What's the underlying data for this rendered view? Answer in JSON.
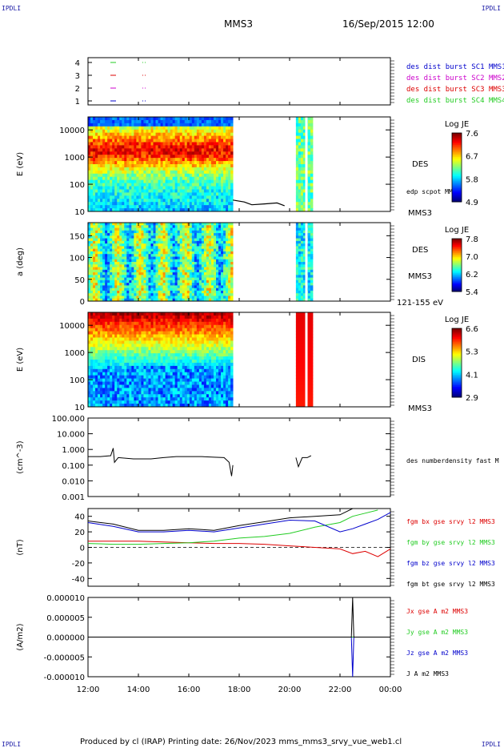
{
  "header": {
    "corner_left": "IPDLI",
    "corner_right": "IPDLI",
    "spacecraft": "MMS3",
    "datetime": "16/Sep/2015 12:00"
  },
  "footer": {
    "corner_left": "IPDLI",
    "corner_right": "IPDLI",
    "text": "Produced by cl (IRAP)   Printing date: 26/Nov/2023   mms_mms3_srvy_vue_web1.cl"
  },
  "colors": {
    "blue": "#0000cc",
    "magenta": "#cc00cc",
    "red": "#dd0000",
    "green": "#22cc22",
    "black": "#000000"
  },
  "chart_data": [
    {
      "type": "scatter",
      "panel": "burst-availability",
      "yticks": [
        "4",
        "3",
        "2",
        "1"
      ],
      "legend": [
        {
          "label": "des dist burst SC1 MMS1",
          "color": "#0000cc"
        },
        {
          "label": "des dist burst SC2 MMS2",
          "color": "#cc00cc"
        },
        {
          "label": "des dist burst SC3 MMS3",
          "color": "#dd0000"
        },
        {
          "label": "des dist burst SC4 MMS4",
          "color": "#22cc22"
        }
      ]
    },
    {
      "type": "heatmap",
      "panel": "des-energy",
      "ylabel": "E (eV)",
      "yscale": "log",
      "ylim": [
        10,
        30000
      ],
      "yticks": [
        "10000",
        "1000",
        "100",
        "10"
      ],
      "side_label": "DES",
      "colorbar": {
        "title": "Log JE",
        "ticks": [
          "7.6",
          "6.7",
          "5.8",
          "4.9"
        ]
      },
      "overlay_label": "edp scpot MMS3",
      "bottom_label": "MMS3",
      "data_intervals_hours": [
        [
          12.0,
          17.75
        ],
        [
          20.25,
          20.92
        ]
      ]
    },
    {
      "type": "heatmap",
      "panel": "des-pitch",
      "ylabel": "a (deg)",
      "ylim": [
        0,
        180
      ],
      "yticks": [
        "150",
        "100",
        "50",
        "0"
      ],
      "side_label": "DES",
      "side_label2": "MMS3",
      "colorbar": {
        "title": "Log JE",
        "ticks": [
          "7.8",
          "7.0",
          "6.2",
          "5.4"
        ]
      },
      "bottom_label": "121-155 eV"
    },
    {
      "type": "heatmap",
      "panel": "dis-energy",
      "ylabel": "E (eV)",
      "yscale": "log",
      "ylim": [
        10,
        30000
      ],
      "yticks": [
        "10000",
        "1000",
        "100",
        "10"
      ],
      "side_label": "DIS",
      "colorbar": {
        "title": "Log JE",
        "ticks": [
          "6.6",
          "5.3",
          "4.1",
          "2.9"
        ]
      },
      "bottom_label": "MMS3"
    },
    {
      "type": "line",
      "panel": "density",
      "ylabel": "(cm^-3)",
      "yscale": "log",
      "ylim": [
        0.001,
        100
      ],
      "yticks": [
        "100.000",
        "10.000",
        "1.000",
        "0.100",
        "0.010",
        "0.001"
      ],
      "series": [
        {
          "name": "des numberdensity fast M",
          "color": "#000000",
          "x": [
            12.0,
            12.5,
            12.9,
            13.0,
            13.05,
            13.2,
            13.8,
            14.5,
            15.0,
            15.5,
            16.0,
            16.5,
            17.0,
            17.4,
            17.6,
            17.7,
            17.75,
            20.25,
            20.35,
            20.5,
            20.7,
            20.85
          ],
          "y": [
            0.35,
            0.35,
            0.4,
            1.2,
            0.15,
            0.3,
            0.25,
            0.25,
            0.3,
            0.35,
            0.35,
            0.35,
            0.32,
            0.3,
            0.15,
            0.02,
            0.1,
            0.3,
            0.08,
            0.3,
            0.3,
            0.4
          ]
        }
      ]
    },
    {
      "type": "line",
      "panel": "magnetic-field",
      "ylabel": "(nT)",
      "ylim": [
        -50,
        50
      ],
      "yticks": [
        "40",
        "20",
        "0",
        "-20",
        "-40"
      ],
      "series": [
        {
          "name": "fgm bx gse srvy l2 MMS3",
          "color": "#dd0000",
          "x": [
            12.0,
            13.0,
            14.0,
            15.0,
            16.0,
            17.0,
            18.0,
            19.0,
            20.0,
            21.0,
            22.0,
            22.5,
            23.0,
            23.5,
            24.0
          ],
          "y": [
            8,
            8,
            8,
            7,
            6,
            5,
            5,
            4,
            2,
            0,
            -2,
            -8,
            -5,
            -12,
            -2
          ]
        },
        {
          "name": "fgm by gse srvy l2 MMS3",
          "color": "#22cc22",
          "x": [
            12.0,
            13.0,
            14.0,
            15.0,
            16.0,
            17.0,
            18.0,
            19.0,
            20.0,
            21.0,
            22.0,
            22.5,
            23.0,
            23.5
          ],
          "y": [
            5,
            4,
            4,
            5,
            6,
            8,
            12,
            14,
            18,
            26,
            32,
            40,
            44,
            48
          ]
        },
        {
          "name": "fgm bz gse srvy l2 MMS3",
          "color": "#0000cc",
          "x": [
            12.0,
            13.0,
            14.0,
            15.0,
            16.0,
            17.0,
            18.0,
            19.0,
            20.0,
            21.0,
            22.0,
            22.5,
            23.0,
            23.5,
            24.0
          ],
          "y": [
            32,
            27,
            20,
            20,
            22,
            20,
            25,
            30,
            35,
            34,
            20,
            24,
            30,
            36,
            45
          ]
        },
        {
          "name": "fgm bt gse srvy l2 MMS3",
          "color": "#000000",
          "x": [
            12.0,
            13.0,
            14.0,
            15.0,
            16.0,
            17.0,
            18.0,
            19.0,
            20.0,
            21.0,
            22.0,
            22.5
          ],
          "y": [
            34,
            30,
            22,
            22,
            24,
            22,
            28,
            33,
            38,
            40,
            42,
            50
          ]
        }
      ]
    },
    {
      "type": "line",
      "panel": "current-density",
      "ylabel": "(A/m2)",
      "ylim": [
        -1e-05,
        1e-05
      ],
      "yticks": [
        "0.000010",
        "0.000005",
        "0.000000",
        "-0.000005",
        "-0.000010"
      ],
      "series": [
        {
          "name": "Jx gse A m2 MMS3",
          "color": "#dd0000",
          "x": [
            12.0,
            24.0
          ],
          "y": [
            0,
            0
          ]
        },
        {
          "name": "Jy gse A m2 MMS3",
          "color": "#22cc22",
          "x": [
            12.0,
            24.0
          ],
          "y": [
            0,
            0
          ]
        },
        {
          "name": "Jz gse A m2 MMS3",
          "color": "#0000cc",
          "x": [
            12.0,
            22.45,
            22.5,
            22.55,
            24.0
          ],
          "y": [
            0,
            0,
            -1e-05,
            0,
            0
          ]
        },
        {
          "name": "J A m2 MMS3",
          "color": "#000000",
          "x": [
            12.0,
            22.45,
            22.5,
            22.55,
            24.0
          ],
          "y": [
            0,
            0,
            1e-05,
            0,
            0
          ]
        }
      ]
    }
  ],
  "xaxis": {
    "tick_labels": [
      "12:00",
      "14:00",
      "16:00",
      "18:00",
      "20:00",
      "22:00",
      "00:00"
    ],
    "range_hours": [
      12,
      24
    ]
  }
}
